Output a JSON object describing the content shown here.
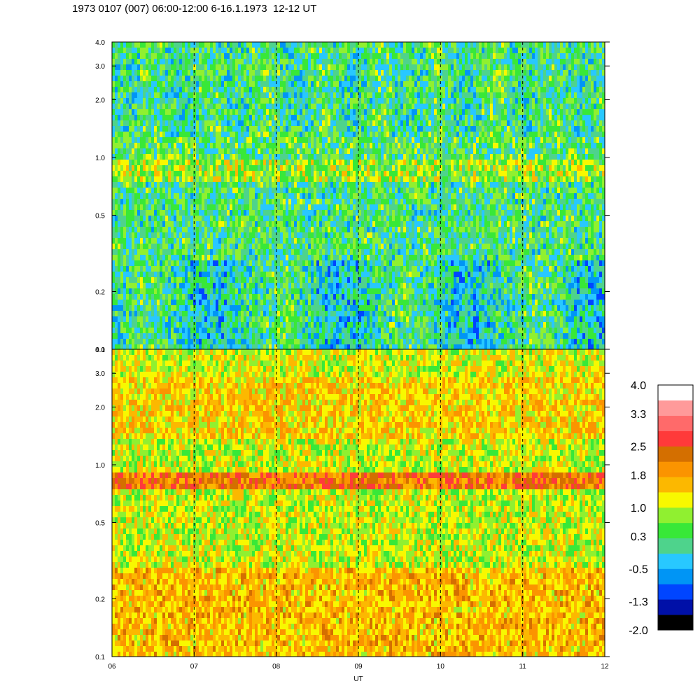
{
  "title": "1973 0107 (007) 06:00-12:00 6-16.1.1973  12-12 UT",
  "chart_data": {
    "type": "heatmap",
    "xlabel": "UT",
    "x_tick_labels": [
      "06",
      "07",
      "08",
      "09",
      "10",
      "11",
      "12"
    ],
    "xlim": [
      6,
      12
    ],
    "y_scale": "log",
    "ylim": [
      0.1,
      4.0
    ],
    "y_tick_labels": [
      "0.1",
      "0.2",
      "0.5",
      "1.0",
      "2.0",
      "3.0",
      "4.0"
    ],
    "panels": [
      {
        "panel": "upper",
        "dominant_levels": [
          "green",
          "cyan",
          "yellow-green"
        ],
        "bands": [
          {
            "y_range": [
              0.8,
              1.0
            ],
            "level": 0.8
          }
        ]
      },
      {
        "panel": "lower",
        "dominant_levels": [
          "orange",
          "yellow"
        ],
        "bands": [
          {
            "y_range": [
              0.75,
              0.95
            ],
            "level": 2.1
          }
        ]
      }
    ],
    "dashed_vertical_lines_at": [
      7,
      8,
      9,
      10,
      11
    ],
    "colorbar": {
      "labels": [
        "4.0",
        "3.3",
        "2.5",
        "1.8",
        "1.0",
        "0.3",
        "-0.5",
        "-1.3",
        "-2.0"
      ],
      "range": [
        -2.0,
        4.0
      ],
      "colors": [
        "#000000",
        "#0010a8",
        "#0045ff",
        "#0095f5",
        "#28c8ff",
        "#4ed38c",
        "#38e838",
        "#90f030",
        "#f8f800",
        "#fcb800",
        "#fb9400",
        "#d46f00",
        "#ff3a3a",
        "#ff6a6a",
        "#ff9a9a",
        "#ffffff"
      ]
    }
  }
}
